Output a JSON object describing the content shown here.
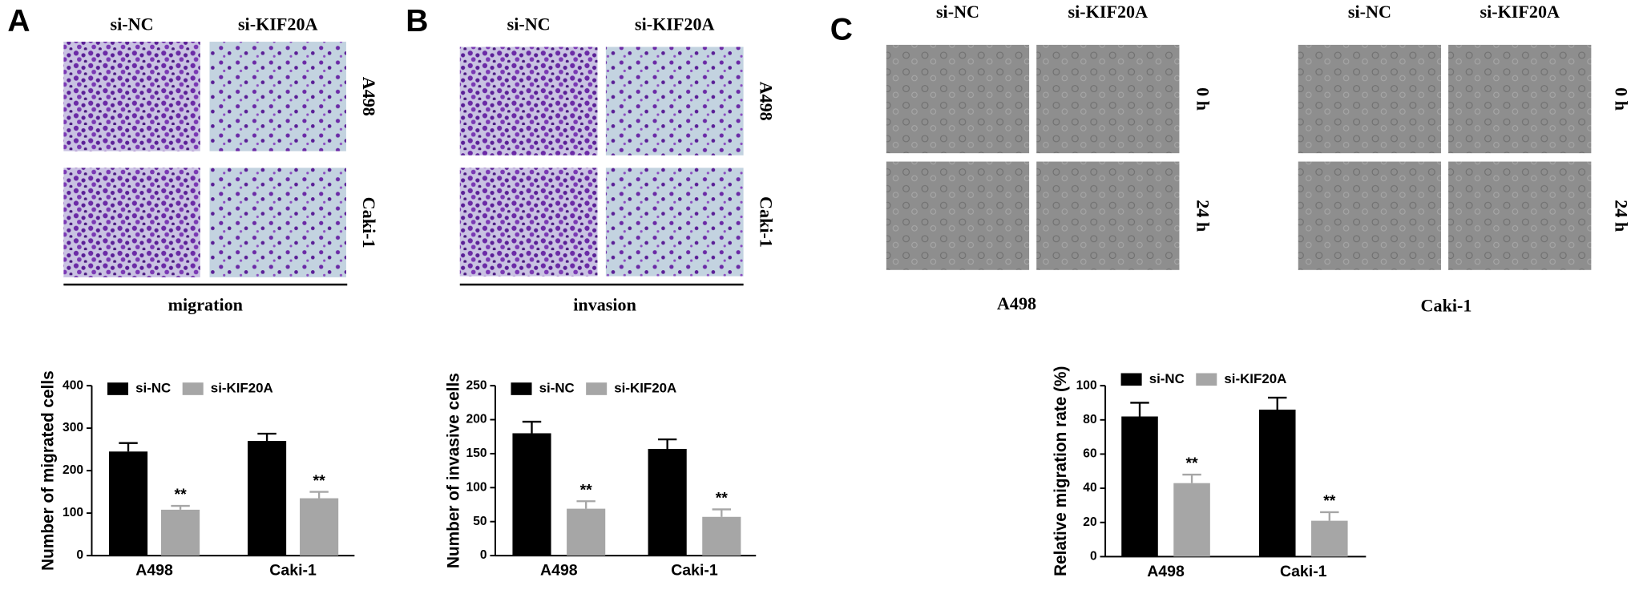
{
  "figure": {
    "panels": [
      {
        "letter": "A",
        "columns": [
          "si-NC",
          "si-KIF20A"
        ],
        "rows": [
          "A498",
          "Caki-1"
        ],
        "caption": "migration"
      },
      {
        "letter": "B",
        "columns": [
          "si-NC",
          "si-KIF20A"
        ],
        "rows": [
          "A498",
          "Caki-1"
        ],
        "caption": "invasion"
      },
      {
        "letter": "C",
        "groups": [
          {
            "columns": [
              "si-NC",
              "si-KIF20A"
            ],
            "rows": [
              "0 h",
              "24 h"
            ],
            "caption": "A498"
          },
          {
            "columns": [
              "si-NC",
              "si-KIF20A"
            ],
            "rows": [
              "0 h",
              "24 h"
            ],
            "caption": "Caki-1"
          }
        ]
      }
    ]
  },
  "chart_data": [
    {
      "type": "bar",
      "y_label": "Number of migrated cells",
      "categories": [
        "A498",
        "Caki-1"
      ],
      "series": [
        {
          "name": "si-NC",
          "color": "#000000",
          "values": [
            245,
            270
          ],
          "errors": [
            20,
            17
          ]
        },
        {
          "name": "si-KIF20A",
          "color": "#a6a6a6",
          "values": [
            108,
            135
          ],
          "errors": [
            9,
            15
          ],
          "annotations": [
            "**",
            "**"
          ]
        }
      ],
      "ylim": [
        0,
        400
      ],
      "yticks": [
        0,
        100,
        200,
        300,
        400
      ],
      "legend": "top-left"
    },
    {
      "type": "bar",
      "y_label": "Number of invasive cells",
      "categories": [
        "A498",
        "Caki-1"
      ],
      "series": [
        {
          "name": "si-NC",
          "color": "#000000",
          "values": [
            180,
            157
          ],
          "errors": [
            17,
            14
          ]
        },
        {
          "name": "si-KIF20A",
          "color": "#a6a6a6",
          "values": [
            69,
            57
          ],
          "errors": [
            11,
            11
          ],
          "annotations": [
            "**",
            "**"
          ]
        }
      ],
      "ylim": [
        0,
        250
      ],
      "yticks": [
        0,
        50,
        100,
        150,
        200,
        250
      ],
      "legend": "top-left"
    },
    {
      "type": "bar",
      "y_label": "Relative migration rate (%)",
      "categories": [
        "A498",
        "Caki-1"
      ],
      "series": [
        {
          "name": "si-NC",
          "color": "#000000",
          "values": [
            82,
            86
          ],
          "errors": [
            8,
            7
          ]
        },
        {
          "name": "si-KIF20A",
          "color": "#a6a6a6",
          "values": [
            43,
            21
          ],
          "errors": [
            5,
            5
          ],
          "annotations": [
            "**",
            "**"
          ]
        }
      ],
      "ylim": [
        0,
        100
      ],
      "yticks": [
        0,
        20,
        40,
        60,
        80,
        100
      ],
      "legend": "top-left"
    }
  ]
}
